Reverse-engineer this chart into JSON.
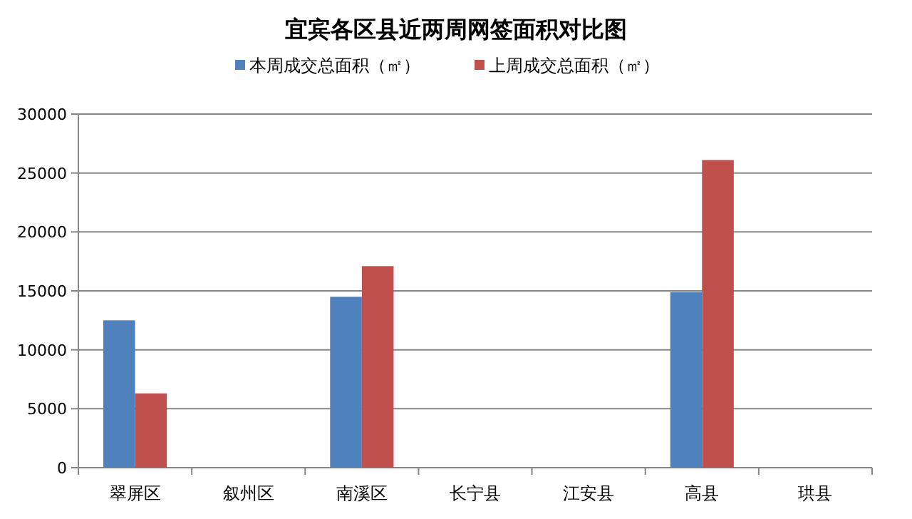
{
  "chart_data": {
    "type": "bar",
    "title": "宜宾各区县近两周网签面积对比图",
    "categories": [
      "翠屏区",
      "叙州区",
      "南溪区",
      "长宁县",
      "江安县",
      "高县",
      "珙县"
    ],
    "series": [
      {
        "name": "本周成交总面积（㎡）",
        "color": "#4f81bd",
        "values": [
          12500,
          null,
          14500,
          null,
          null,
          14900,
          null
        ]
      },
      {
        "name": "上周成交总面积（㎡）",
        "color": "#c0504d",
        "values": [
          6300,
          null,
          17100,
          null,
          null,
          26100,
          null
        ]
      }
    ],
    "ylim": [
      0,
      30000
    ],
    "yticks": [
      0,
      5000,
      10000,
      15000,
      20000,
      25000,
      30000
    ],
    "grid": "y",
    "legend": "top"
  }
}
